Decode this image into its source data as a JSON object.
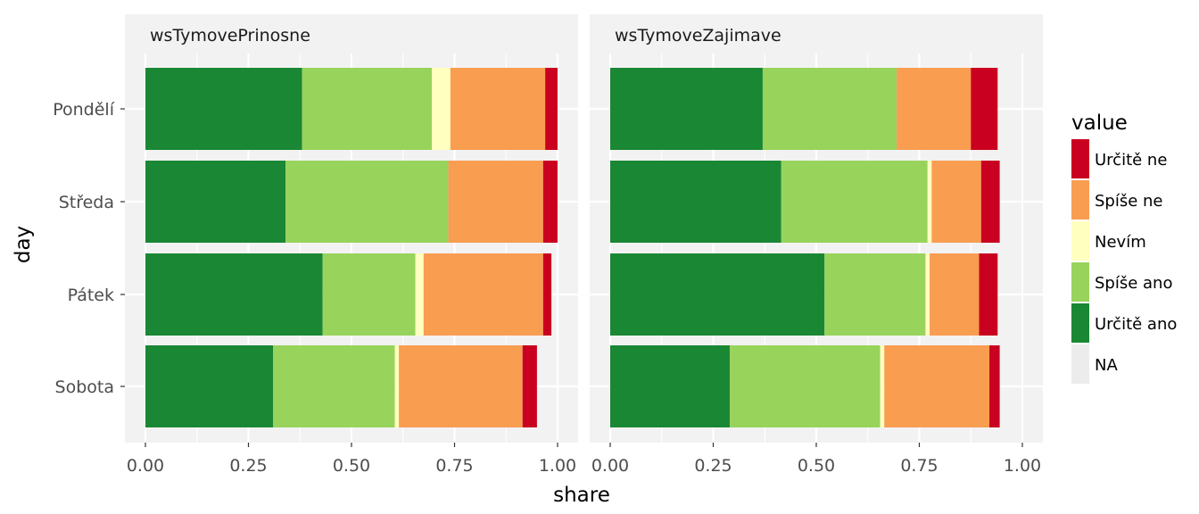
{
  "chart_data": {
    "type": "bar",
    "orientation": "horizontal",
    "stacked": true,
    "xlabel": "share",
    "ylabel": "day",
    "xlim": [
      0,
      1
    ],
    "x_ticks": [
      "0.00",
      "0.25",
      "0.50",
      "0.75",
      "1.00"
    ],
    "categories": [
      "Pondělí",
      "Středa",
      "Pátek",
      "Sobota"
    ],
    "legend": {
      "title": "value",
      "position": "right",
      "entries": [
        {
          "label": "Určitě ne",
          "color": "#ca0020"
        },
        {
          "label": "Spíše ne",
          "color": "#f99d51"
        },
        {
          "label": "Nevím",
          "color": "#ffffbf"
        },
        {
          "label": "Spíše ano",
          "color": "#98d35c"
        },
        {
          "label": "Určitě ano",
          "color": "#1a8734"
        },
        {
          "label": "NA",
          "color": "#ececec"
        }
      ]
    },
    "stack_order": [
      "Určitě ano",
      "Spíše ano",
      "Nevím",
      "Spíše ne",
      "Určitě ne"
    ],
    "panels": [
      {
        "title": "wsTymovePrinosne",
        "series": [
          {
            "name": "Určitě ano",
            "values": [
              0.38,
              0.34,
              0.43,
              0.31
            ]
          },
          {
            "name": "Spíše ano",
            "values": [
              0.315,
              0.395,
              0.225,
              0.295
            ]
          },
          {
            "name": "Nevím",
            "values": [
              0.045,
              0.0,
              0.02,
              0.01
            ]
          },
          {
            "name": "Spíše ne",
            "values": [
              0.23,
              0.23,
              0.29,
              0.3
            ]
          },
          {
            "name": "Určitě ne",
            "values": [
              0.03,
              0.035,
              0.02,
              0.035
            ]
          }
        ]
      },
      {
        "title": "wsTymoveZajimave",
        "series": [
          {
            "name": "Určitě ano",
            "values": [
              0.37,
              0.415,
              0.52,
              0.29
            ]
          },
          {
            "name": "Spíše ano",
            "values": [
              0.325,
              0.355,
              0.245,
              0.365
            ]
          },
          {
            "name": "Nevím",
            "values": [
              0.0,
              0.01,
              0.01,
              0.01
            ]
          },
          {
            "name": "Spíše ne",
            "values": [
              0.18,
              0.12,
              0.12,
              0.255
            ]
          },
          {
            "name": "Určitě ne",
            "values": [
              0.065,
              0.045,
              0.045,
              0.025
            ]
          }
        ]
      }
    ],
    "grid": true
  }
}
